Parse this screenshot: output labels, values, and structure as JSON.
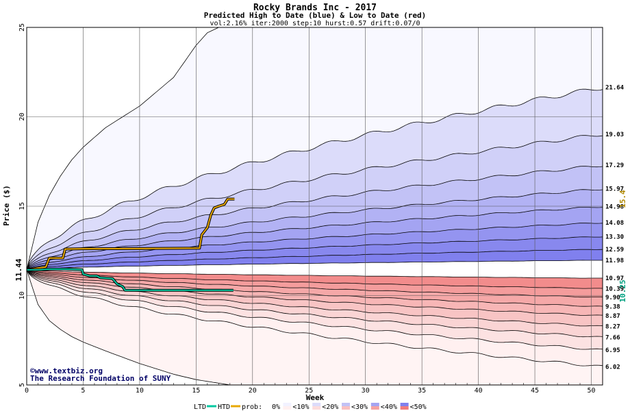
{
  "chart_data": {
    "type": "area",
    "title": "Rocky Brands Inc - 2017",
    "subtitle": "Predicted High to Date (blue) &  Low to Date (red)",
    "params": "vol:2.16% iter:2000 step:10 hurst:0.57 drift:0.07/0",
    "xlabel": "Week",
    "ylabel": "Price ($)",
    "xlim": [
      0,
      51
    ],
    "ylim": [
      5,
      25
    ],
    "x_ticks": [
      0,
      5,
      10,
      15,
      20,
      25,
      30,
      35,
      40,
      45,
      50
    ],
    "y_ticks": [
      5,
      10,
      15,
      20,
      25
    ],
    "grid": true,
    "start_price": 11.44,
    "start_price_label": "11.44",
    "high_envelope": [
      {
        "x": 0,
        "y": 11.44
      },
      {
        "x": 1,
        "y": 14.1
      },
      {
        "x": 2,
        "y": 15.6
      },
      {
        "x": 3,
        "y": 16.7
      },
      {
        "x": 4,
        "y": 17.6
      },
      {
        "x": 5,
        "y": 18.3
      },
      {
        "x": 7,
        "y": 19.4
      },
      {
        "x": 10,
        "y": 20.6
      },
      {
        "x": 13,
        "y": 22.2
      },
      {
        "x": 15,
        "y": 24.0
      },
      {
        "x": 16,
        "y": 24.7
      },
      {
        "x": 17,
        "y": 25.0
      }
    ],
    "low_envelope": [
      {
        "x": 0,
        "y": 11.44
      },
      {
        "x": 1,
        "y": 9.5
      },
      {
        "x": 2,
        "y": 8.6
      },
      {
        "x": 3,
        "y": 8.1
      },
      {
        "x": 4,
        "y": 7.7
      },
      {
        "x": 5,
        "y": 7.4
      },
      {
        "x": 7,
        "y": 6.9
      },
      {
        "x": 10,
        "y": 6.2
      },
      {
        "x": 13,
        "y": 5.6
      },
      {
        "x": 15,
        "y": 5.3
      },
      {
        "x": 18,
        "y": 5.0
      }
    ],
    "upper_bands": [
      {
        "end": 21.64,
        "label": "21.64"
      },
      {
        "end": 19.03,
        "label": "19.03"
      },
      {
        "end": 17.29,
        "label": "17.29"
      },
      {
        "end": 15.97,
        "label": "15.97"
      },
      {
        "end": 14.98,
        "label": "14.98"
      },
      {
        "end": 14.08,
        "label": "14.08"
      },
      {
        "end": 13.3,
        "label": "13.30"
      },
      {
        "end": 12.59,
        "label": "12.59"
      },
      {
        "end": 11.98,
        "label": "11.98"
      }
    ],
    "lower_bands": [
      {
        "end": 10.97,
        "label": "10.97"
      },
      {
        "end": 10.39,
        "label": "10.39"
      },
      {
        "end": 9.9,
        "label": "9.90"
      },
      {
        "end": 9.38,
        "label": "9.38"
      },
      {
        "end": 8.87,
        "label": "8.87"
      },
      {
        "end": 8.27,
        "label": "8.27"
      },
      {
        "end": 7.66,
        "label": "7.66"
      },
      {
        "end": 6.95,
        "label": "6.95"
      },
      {
        "end": 6.02,
        "label": "6.02"
      }
    ],
    "ltd_series": {
      "name": "LTD",
      "color": "#00c8a0",
      "end_label": "10.25",
      "points": [
        {
          "x": 0,
          "y": 11.44
        },
        {
          "x": 1.2,
          "y": 11.45
        },
        {
          "x": 2,
          "y": 11.48
        },
        {
          "x": 3.5,
          "y": 11.48
        },
        {
          "x": 4.9,
          "y": 11.45
        },
        {
          "x": 5,
          "y": 11.2
        },
        {
          "x": 5.6,
          "y": 11.1
        },
        {
          "x": 6.2,
          "y": 11.1
        },
        {
          "x": 6.5,
          "y": 11.0
        },
        {
          "x": 7.6,
          "y": 10.95
        },
        {
          "x": 8.0,
          "y": 10.65
        },
        {
          "x": 8.5,
          "y": 10.5
        },
        {
          "x": 8.7,
          "y": 10.3
        },
        {
          "x": 12,
          "y": 10.3
        },
        {
          "x": 18.3,
          "y": 10.3
        }
      ]
    },
    "htd_series": {
      "name": "HTD",
      "color": "#e8a800",
      "end_label": "15.4",
      "points": [
        {
          "x": 0,
          "y": 11.44
        },
        {
          "x": 1.7,
          "y": 11.6
        },
        {
          "x": 2.0,
          "y": 12.1
        },
        {
          "x": 3.2,
          "y": 12.1
        },
        {
          "x": 3.4,
          "y": 12.6
        },
        {
          "x": 5,
          "y": 12.62
        },
        {
          "x": 10,
          "y": 12.63
        },
        {
          "x": 15.3,
          "y": 12.65
        },
        {
          "x": 15.5,
          "y": 13.4
        },
        {
          "x": 16.0,
          "y": 13.8
        },
        {
          "x": 16.3,
          "y": 14.5
        },
        {
          "x": 16.6,
          "y": 14.9
        },
        {
          "x": 17.0,
          "y": 15.0
        },
        {
          "x": 17.5,
          "y": 15.1
        },
        {
          "x": 17.8,
          "y": 15.4
        },
        {
          "x": 18.4,
          "y": 15.4
        }
      ]
    },
    "legend": {
      "placement": "bottom",
      "prob_label": "prob:",
      "items": [
        {
          "label": "0%",
          "blue": "#ffffff",
          "red": "#ffffff"
        },
        {
          "label": "<10%",
          "blue": "#f2f2ff",
          "red": "#fff0f0"
        },
        {
          "label": "<20%",
          "blue": "#dcdcfa",
          "red": "#fcdcdc"
        },
        {
          "label": "<30%",
          "blue": "#c2c2f6",
          "red": "#f8c0c0"
        },
        {
          "label": "<40%",
          "blue": "#a4a4f2",
          "red": "#f4a2a2"
        },
        {
          "label": "<50%",
          "blue": "#8080ee",
          "red": "#f07c7c"
        }
      ]
    },
    "upper_band_colors": [
      "#f2f2ff",
      "#dcdcfa",
      "#d0d0f8",
      "#c2c2f6",
      "#b2b2f4",
      "#a4a4f2",
      "#9494f0",
      "#8888ee",
      "#8080ee"
    ],
    "lower_band_colors": [
      "#f07c7c",
      "#f28c8c",
      "#f49c9c",
      "#f5a8a8",
      "#f7b6b6",
      "#f8c4c4",
      "#fad4d4",
      "#fce2e2",
      "#fff0f0"
    ]
  },
  "credits": {
    "site": "©www.textbiz.org",
    "org": "The Research Foundation of SUNY"
  }
}
